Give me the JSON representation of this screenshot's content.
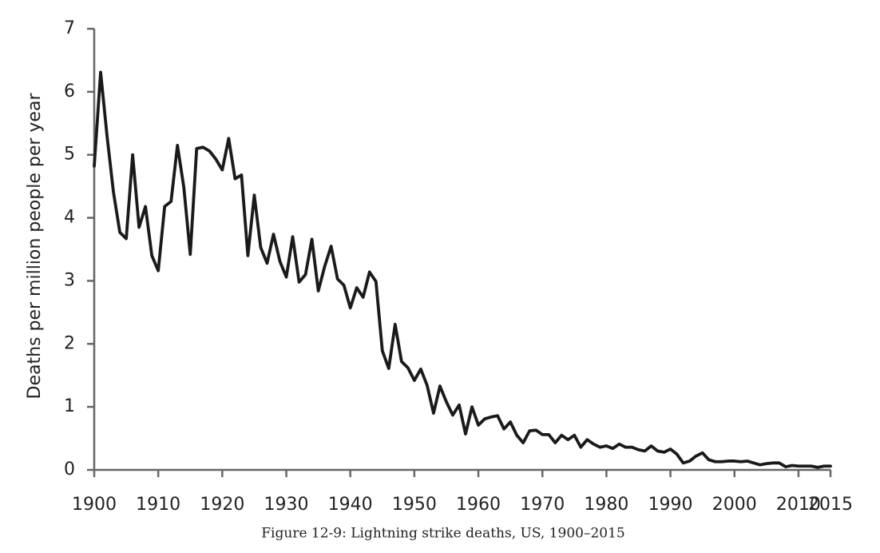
{
  "chart_data": {
    "type": "line",
    "title": "Figure 12-9: Lightning strike deaths, US, 1900–2015",
    "ylabel": "Deaths per million people per year",
    "color": "#1a1a1a",
    "x": [
      1900,
      1901,
      1902,
      1903,
      1904,
      1905,
      1906,
      1907,
      1908,
      1909,
      1910,
      1911,
      1912,
      1913,
      1914,
      1915,
      1916,
      1917,
      1918,
      1919,
      1920,
      1921,
      1922,
      1923,
      1924,
      1925,
      1926,
      1927,
      1928,
      1929,
      1930,
      1931,
      1932,
      1933,
      1934,
      1935,
      1936,
      1937,
      1938,
      1939,
      1940,
      1941,
      1942,
      1943,
      1944,
      1945,
      1946,
      1947,
      1948,
      1949,
      1950,
      1951,
      1952,
      1953,
      1954,
      1955,
      1956,
      1957,
      1958,
      1959,
      1960,
      1961,
      1962,
      1963,
      1964,
      1965,
      1966,
      1967,
      1968,
      1969,
      1970,
      1971,
      1972,
      1973,
      1974,
      1975,
      1976,
      1977,
      1978,
      1979,
      1980,
      1981,
      1982,
      1983,
      1984,
      1985,
      1986,
      1987,
      1988,
      1989,
      1990,
      1991,
      1992,
      1993,
      1994,
      1995,
      1996,
      1997,
      1998,
      1999,
      2000,
      2001,
      2002,
      2003,
      2004,
      2005,
      2006,
      2007,
      2008,
      2009,
      2010,
      2011,
      2012,
      2013,
      2014,
      2015
    ],
    "values": [
      4.82,
      6.31,
      5.3,
      4.41,
      3.77,
      3.67,
      5.0,
      3.85,
      4.18,
      3.4,
      3.16,
      4.18,
      4.26,
      5.15,
      4.48,
      3.42,
      5.1,
      5.12,
      5.06,
      4.93,
      4.76,
      5.26,
      4.62,
      4.68,
      3.4,
      4.36,
      3.53,
      3.28,
      3.74,
      3.31,
      3.06,
      3.7,
      2.98,
      3.1,
      3.66,
      2.84,
      3.23,
      3.55,
      3.03,
      2.93,
      2.57,
      2.89,
      2.74,
      3.14,
      2.99,
      1.89,
      1.61,
      2.31,
      1.72,
      1.62,
      1.42,
      1.6,
      1.34,
      0.9,
      1.33,
      1.08,
      0.87,
      1.03,
      0.57,
      1.0,
      0.71,
      0.81,
      0.84,
      0.86,
      0.65,
      0.76,
      0.55,
      0.43,
      0.62,
      0.63,
      0.56,
      0.56,
      0.43,
      0.55,
      0.48,
      0.55,
      0.36,
      0.48,
      0.41,
      0.36,
      0.38,
      0.34,
      0.41,
      0.36,
      0.36,
      0.32,
      0.3,
      0.38,
      0.3,
      0.28,
      0.33,
      0.25,
      0.11,
      0.14,
      0.22,
      0.27,
      0.16,
      0.13,
      0.13,
      0.14,
      0.14,
      0.13,
      0.14,
      0.11,
      0.08,
      0.1,
      0.11,
      0.11,
      0.05,
      0.07,
      0.06,
      0.06,
      0.06,
      0.04,
      0.06,
      0.06
    ],
    "xlim": [
      1900,
      2015
    ],
    "xticks": [
      1900,
      1910,
      1920,
      1930,
      1940,
      1950,
      1960,
      1970,
      1980,
      1990,
      2000,
      2010,
      2015
    ],
    "ylim": [
      0,
      7
    ],
    "yticks": [
      0,
      1,
      2,
      3,
      4,
      5,
      6,
      7
    ]
  }
}
